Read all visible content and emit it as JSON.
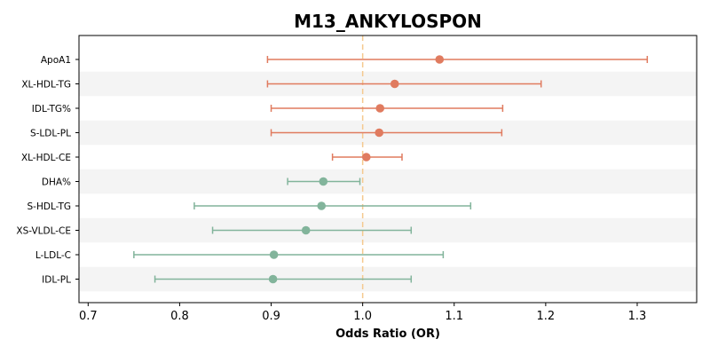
{
  "chart_data": {
    "type": "forest",
    "title": "M13_ANKYLOSPON",
    "xlabel": "Odds Ratio (OR)",
    "ylabel": "",
    "xlim": [
      0.69,
      1.365
    ],
    "xticks": [
      0.7,
      0.8,
      0.9,
      1.0,
      1.1,
      1.2,
      1.3
    ],
    "xtick_labels": [
      "0.7",
      "0.8",
      "0.9",
      "1.0",
      "1.1",
      "1.2",
      "1.3"
    ],
    "reference_line": 1.0,
    "colors": {
      "positive": "#e07b5f",
      "negative": "#82b49b",
      "reference": "#f5c98f",
      "band": "#f4f4f4"
    },
    "rows": [
      {
        "label": "ApoA1",
        "or": 1.084,
        "lower": 0.896,
        "upper": 1.311
      },
      {
        "label": "XL-HDL-TG",
        "or": 1.035,
        "lower": 0.896,
        "upper": 1.195
      },
      {
        "label": "IDL-TG%",
        "or": 1.019,
        "lower": 0.9,
        "upper": 1.153
      },
      {
        "label": "S-LDL-PL",
        "or": 1.018,
        "lower": 0.9,
        "upper": 1.152
      },
      {
        "label": "XL-HDL-CE",
        "or": 1.004,
        "lower": 0.967,
        "upper": 1.043
      },
      {
        "label": "DHA%",
        "or": 0.957,
        "lower": 0.918,
        "upper": 0.997
      },
      {
        "label": "S-HDL-TG",
        "or": 0.955,
        "lower": 0.816,
        "upper": 1.118
      },
      {
        "label": "XS-VLDL-CE",
        "or": 0.938,
        "lower": 0.836,
        "upper": 1.053
      },
      {
        "label": "L-LDL-C",
        "or": 0.903,
        "lower": 0.75,
        "upper": 1.088
      },
      {
        "label": "IDL-PL",
        "or": 0.902,
        "lower": 0.773,
        "upper": 1.053
      }
    ]
  }
}
